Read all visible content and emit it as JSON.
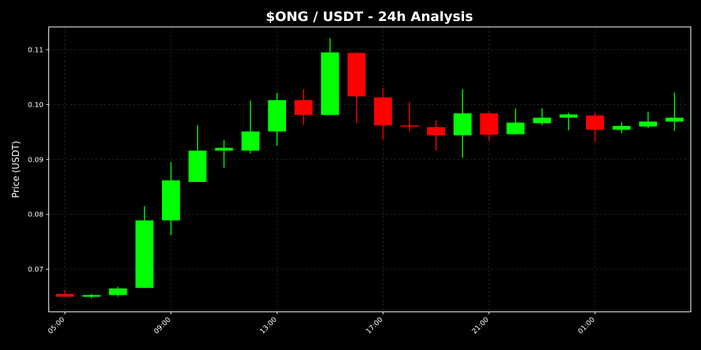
{
  "chart_data": {
    "type": "candlestick",
    "title": "$ONG / USDT - 24h Analysis",
    "xlabel": "",
    "ylabel": "Price (USDT)",
    "ylim": [
      0.0623,
      0.1142
    ],
    "grid": true,
    "colors": {
      "up": "#00ff00",
      "down": "#ff0000",
      "background": "#000000",
      "text": "#ffffff",
      "grid": "#3a3a3a"
    },
    "y_ticks": [
      "0.07",
      "0.08",
      "0.09",
      "0.10",
      "0.11"
    ],
    "y_tick_values": [
      0.07,
      0.08,
      0.09,
      0.1,
      0.11
    ],
    "x_ticks": [
      "05:00",
      "09:00",
      "13:00",
      "17:00",
      "21:00",
      "01:00"
    ],
    "x_tick_indices": [
      0,
      4,
      8,
      12,
      16,
      20
    ],
    "candles": [
      {
        "time": "05:00",
        "open": 0.0655,
        "high": 0.0662,
        "low": 0.065,
        "close": 0.065
      },
      {
        "time": "06:00",
        "open": 0.065,
        "high": 0.0655,
        "low": 0.0647,
        "close": 0.0653
      },
      {
        "time": "07:00",
        "open": 0.0653,
        "high": 0.0668,
        "low": 0.065,
        "close": 0.0665
      },
      {
        "time": "08:00",
        "open": 0.0666,
        "high": 0.0815,
        "low": 0.0666,
        "close": 0.0789
      },
      {
        "time": "09:00",
        "open": 0.0789,
        "high": 0.0895,
        "low": 0.0762,
        "close": 0.0862
      },
      {
        "time": "10:00",
        "open": 0.0859,
        "high": 0.0962,
        "low": 0.0859,
        "close": 0.0916
      },
      {
        "time": "11:00",
        "open": 0.0916,
        "high": 0.0935,
        "low": 0.0885,
        "close": 0.0921
      },
      {
        "time": "12:00",
        "open": 0.0916,
        "high": 0.1007,
        "low": 0.0911,
        "close": 0.0951
      },
      {
        "time": "13:00",
        "open": 0.0951,
        "high": 0.1021,
        "low": 0.0925,
        "close": 0.1008
      },
      {
        "time": "14:00",
        "open": 0.1008,
        "high": 0.1028,
        "low": 0.0963,
        "close": 0.0981
      },
      {
        "time": "15:00",
        "open": 0.0981,
        "high": 0.1121,
        "low": 0.0981,
        "close": 0.1095
      },
      {
        "time": "16:00",
        "open": 0.1094,
        "high": 0.1096,
        "low": 0.0966,
        "close": 0.1015
      },
      {
        "time": "17:00",
        "open": 0.1013,
        "high": 0.103,
        "low": 0.0936,
        "close": 0.0962
      },
      {
        "time": "18:00",
        "open": 0.0962,
        "high": 0.1005,
        "low": 0.0951,
        "close": 0.096
      },
      {
        "time": "19:00",
        "open": 0.0959,
        "high": 0.0971,
        "low": 0.0916,
        "close": 0.0944
      },
      {
        "time": "20:00",
        "open": 0.0944,
        "high": 0.1028,
        "low": 0.0903,
        "close": 0.0984
      },
      {
        "time": "21:00",
        "open": 0.0984,
        "high": 0.0988,
        "low": 0.0934,
        "close": 0.0945
      },
      {
        "time": "22:00",
        "open": 0.0946,
        "high": 0.0993,
        "low": 0.0945,
        "close": 0.0967
      },
      {
        "time": "23:00",
        "open": 0.0966,
        "high": 0.0993,
        "low": 0.0962,
        "close": 0.0976
      },
      {
        "time": "00:00",
        "open": 0.0976,
        "high": 0.0985,
        "low": 0.0953,
        "close": 0.0982
      },
      {
        "time": "01:00",
        "open": 0.098,
        "high": 0.0985,
        "low": 0.0932,
        "close": 0.0954
      },
      {
        "time": "02:00",
        "open": 0.0954,
        "high": 0.0968,
        "low": 0.0948,
        "close": 0.0961
      },
      {
        "time": "03:00",
        "open": 0.096,
        "high": 0.0987,
        "low": 0.0957,
        "close": 0.0969
      },
      {
        "time": "04:00",
        "open": 0.0969,
        "high": 0.1022,
        "low": 0.0952,
        "close": 0.0976
      }
    ]
  }
}
